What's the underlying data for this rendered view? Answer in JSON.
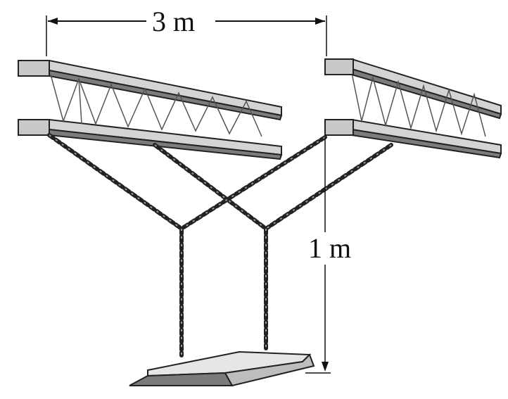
{
  "labels": {
    "width_label": "3 m",
    "height_label": "1 m"
  },
  "colors": {
    "ink": "#1a1a1a",
    "beam_top": "#d9d9d9",
    "beam_side": "#8a8a8a",
    "seat_top": "#e6e6e6",
    "seat_side": "#6f6f6f"
  }
}
